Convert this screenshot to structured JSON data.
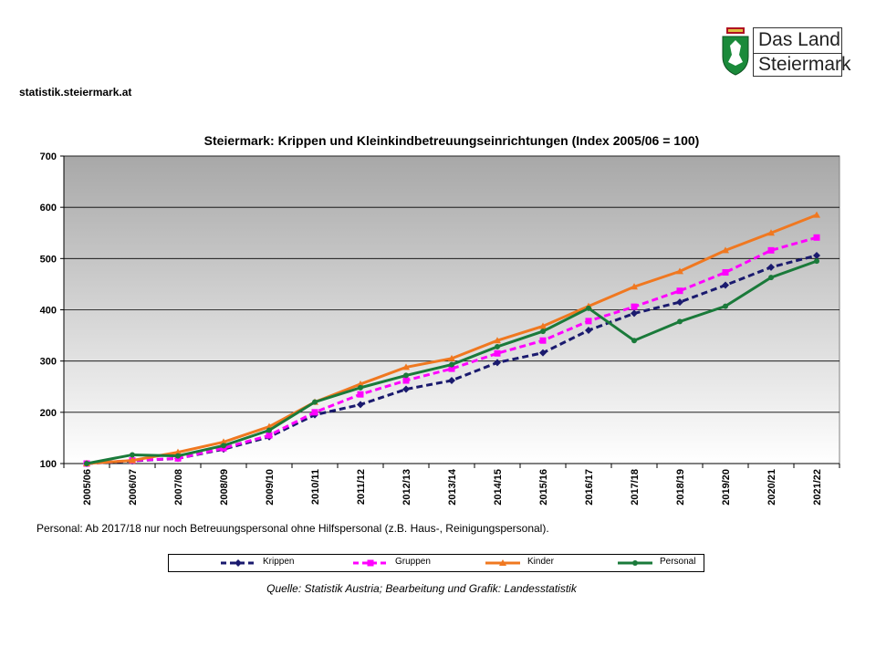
{
  "header": {
    "site": "statistik.steiermark.at",
    "logo_line1": "Das Land",
    "logo_line2": "Steiermark"
  },
  "footer": {
    "note": "Personal: Ab 2017/18  nur noch Betreuungspersonal ohne Hilfspersonal (z.B. Haus-, Reinigungspersonal).",
    "source": "Quelle: Statistik Austria; Bearbeitung und Grafik: Landesstatistik"
  },
  "colors": {
    "krippen": "#1a1a6e",
    "gruppen": "#ff00ff",
    "kinder": "#f07820",
    "personal": "#1a7a3a"
  },
  "chart_data": {
    "type": "line",
    "title": "Steiermark: Krippen und Kleinkindbetreuungseinrichtungen (Index 2005/06 = 100)",
    "xlabel": "",
    "ylabel": "",
    "ylim": [
      100,
      700
    ],
    "yticks": [
      100,
      200,
      300,
      400,
      500,
      600,
      700
    ],
    "grid": true,
    "legend_position": "bottom",
    "categories": [
      "2005/06",
      "2006/07",
      "2007/08",
      "2008/09",
      "2009/10",
      "2010/11",
      "2011/12",
      "2012/13",
      "2013/14",
      "2014/15",
      "2015/16",
      "2016/17",
      "2017/18",
      "2018/19",
      "2019/20",
      "2020/21",
      "2021/22"
    ],
    "series": [
      {
        "name": "Krippen",
        "color": "#1a1a6e",
        "dash": "dashed",
        "marker": "diamond",
        "values": [
          100,
          105,
          110,
          128,
          152,
          195,
          215,
          245,
          262,
          297,
          316,
          360,
          393,
          415,
          448,
          483,
          506
        ]
      },
      {
        "name": "Gruppen",
        "color": "#ff00ff",
        "dash": "dashed",
        "marker": "square",
        "values": [
          100,
          106,
          110,
          130,
          155,
          200,
          235,
          262,
          285,
          315,
          340,
          378,
          406,
          437,
          473,
          516,
          541
        ]
      },
      {
        "name": "Kinder",
        "color": "#f07820",
        "dash": "solid",
        "marker": "triangle",
        "values": [
          100,
          106,
          122,
          142,
          172,
          220,
          255,
          288,
          305,
          340,
          368,
          407,
          445,
          475,
          516,
          550,
          585
        ]
      },
      {
        "name": "Personal",
        "color": "#1a7a3a",
        "dash": "solid",
        "marker": "circle",
        "values": [
          100,
          117,
          115,
          135,
          165,
          220,
          248,
          272,
          293,
          328,
          358,
          403,
          340,
          377,
          407,
          463,
          495
        ]
      }
    ]
  }
}
